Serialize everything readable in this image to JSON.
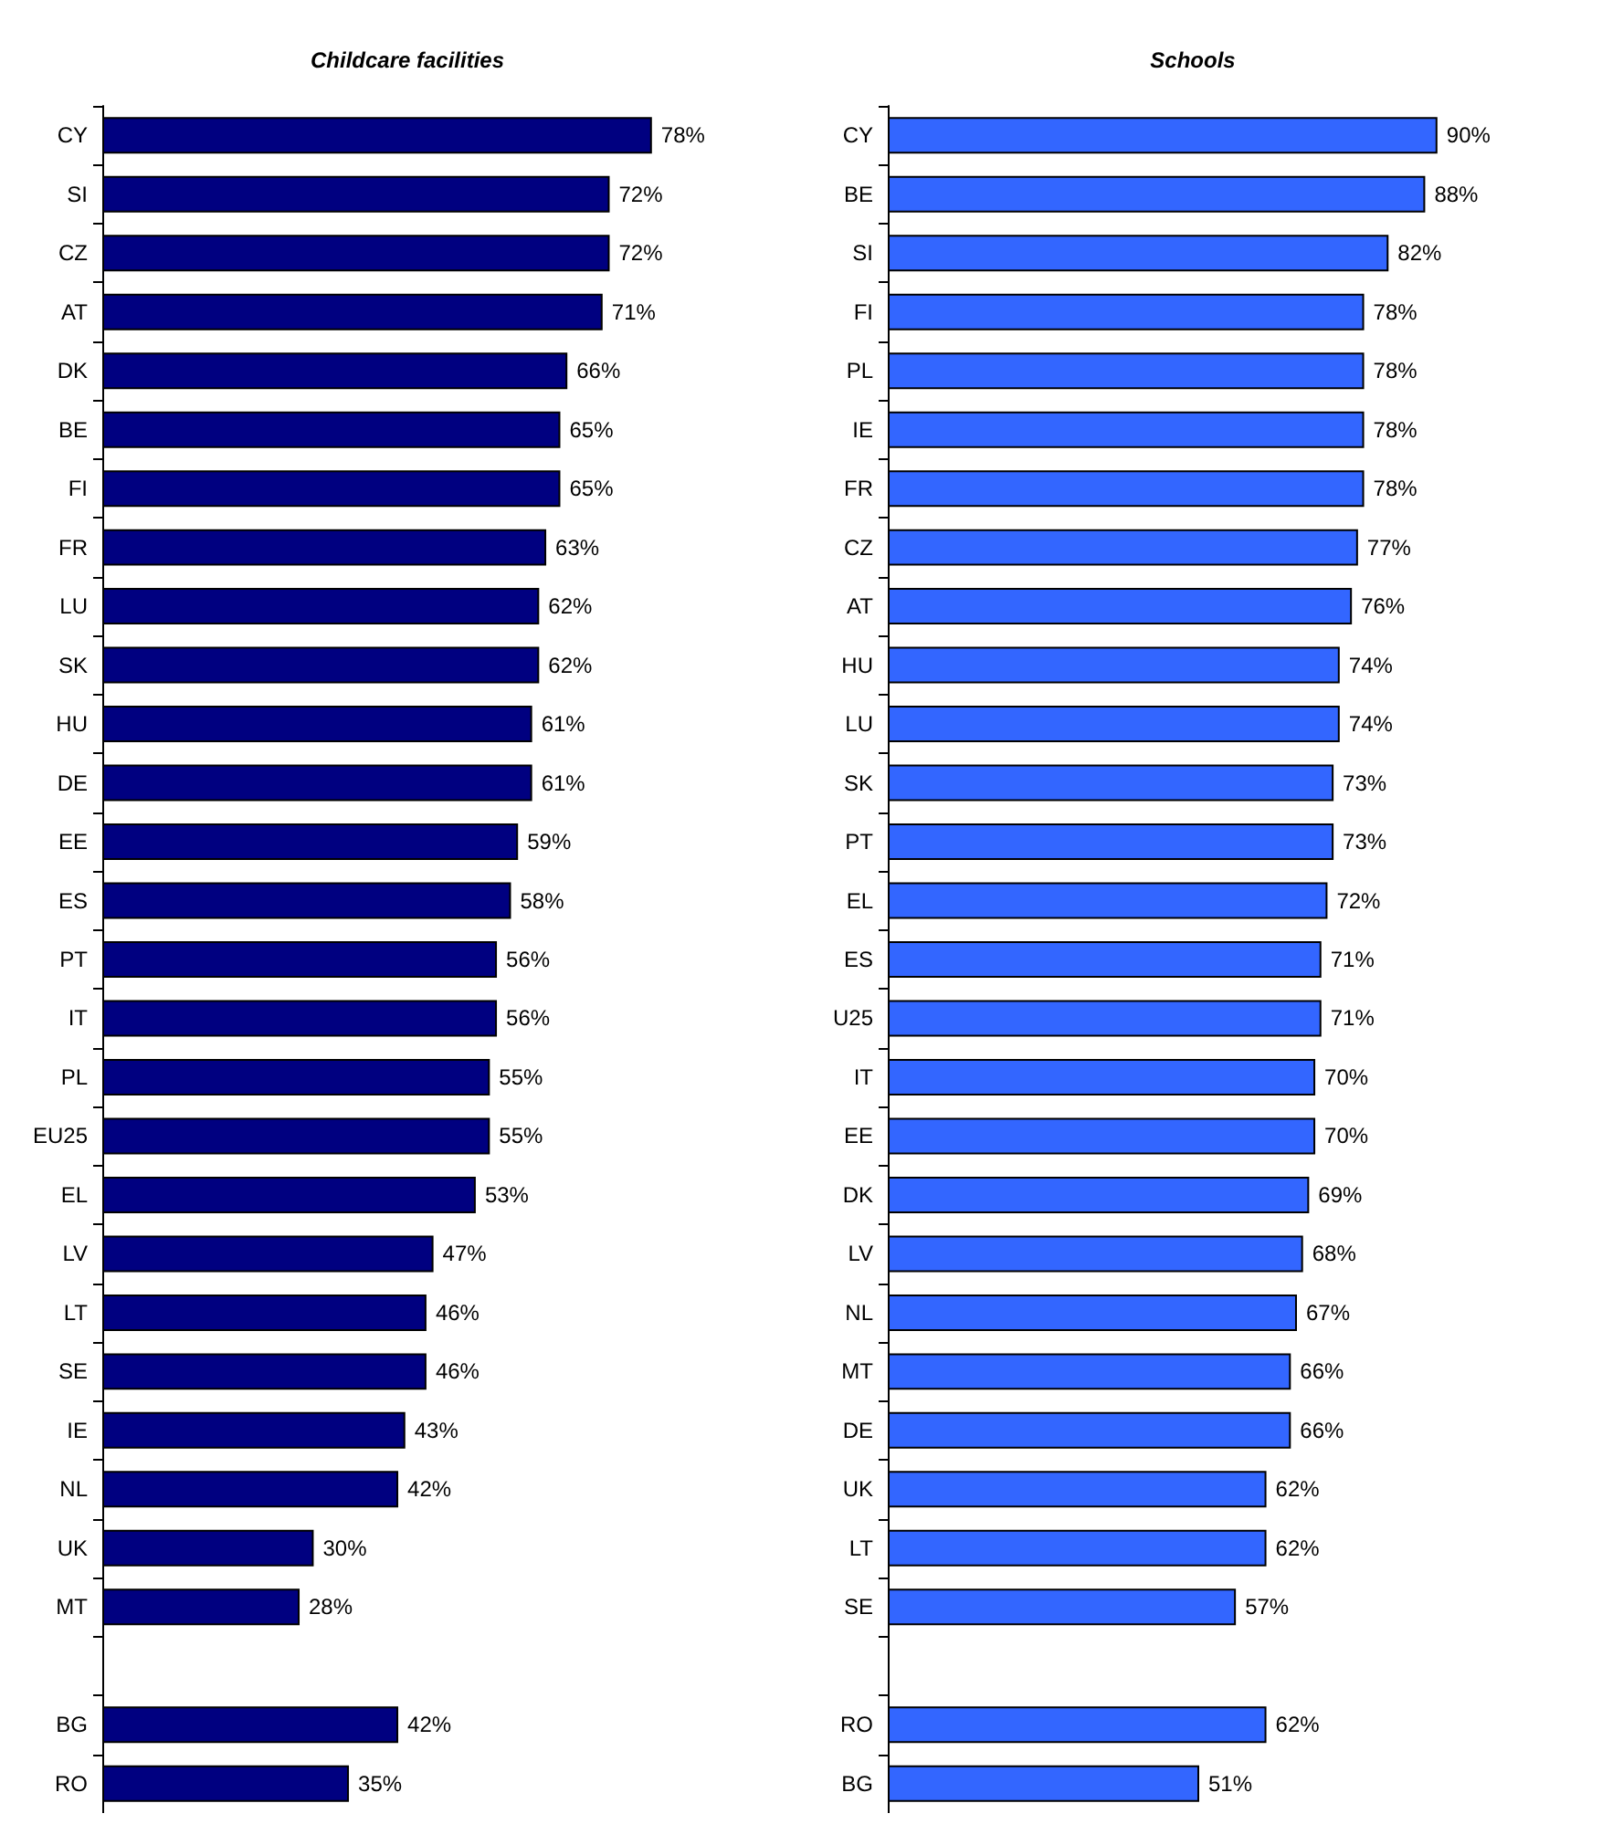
{
  "chart_data": [
    {
      "type": "bar",
      "orientation": "horizontal",
      "title": "Childcare facilities",
      "tick_labels": "y",
      "categories": [
        "CY",
        "SI",
        "CZ",
        "AT",
        "DK",
        "BE",
        "FI",
        "FR",
        "LU",
        "SK",
        "HU",
        "DE",
        "EE",
        "ES",
        "PT",
        "IT",
        "PL",
        "EU25",
        "EL",
        "LV",
        "LT",
        "SE",
        "IE",
        "NL",
        "UK",
        "MT",
        null,
        "BG",
        "RO"
      ],
      "series": [
        {
          "color": "#000080",
          "values": [
            78,
            72,
            72,
            71,
            66,
            65,
            65,
            63,
            62,
            62,
            61,
            61,
            59,
            58,
            56,
            56,
            55,
            55,
            53,
            47,
            46,
            46,
            43,
            42,
            30,
            28,
            null,
            42,
            35
          ],
          "value_labels": [
            "78%",
            "72%",
            "72%",
            "71%",
            "66%",
            "65%",
            "65%",
            "63%",
            "62%",
            "62%",
            "61%",
            "61%",
            "59%",
            "58%",
            "56%",
            "56%",
            "55%",
            "55%",
            "53%",
            "47%",
            "46%",
            "46%",
            "43%",
            "42%",
            "30%",
            "28%",
            null,
            "42%",
            "35%"
          ]
        }
      ]
    },
    {
      "type": "bar",
      "orientation": "horizontal",
      "title": "Schools",
      "tick_labels": "y",
      "categories": [
        "CY",
        "BE",
        "SI",
        "FI",
        "PL",
        "IE",
        "FR",
        "CZ",
        "AT",
        "HU",
        "LU",
        "SK",
        "PT",
        "EL",
        "ES",
        "U25",
        "IT",
        "EE",
        "DK",
        "LV",
        "NL",
        "MT",
        "DE",
        "UK",
        "LT",
        "SE",
        null,
        "RO",
        "BG"
      ],
      "series": [
        {
          "color": "#3366ff",
          "values": [
            90,
            88,
            82,
            78,
            78,
            78,
            78,
            77,
            76,
            74,
            74,
            73,
            73,
            72,
            71,
            71,
            70,
            70,
            69,
            68,
            67,
            66,
            66,
            62,
            62,
            57,
            null,
            62,
            51
          ],
          "value_labels": [
            "90%",
            "88%",
            "82%",
            "78%",
            "78%",
            "78%",
            "78%",
            "77%",
            "76%",
            "74%",
            "74%",
            "73%",
            "73%",
            "72%",
            "71%",
            "71%",
            "70%",
            "70%",
            "69%",
            "68%",
            "67%",
            "66%",
            "66%",
            "62%",
            "62%",
            "57%",
            null,
            "62%",
            "51%"
          ]
        }
      ]
    }
  ]
}
